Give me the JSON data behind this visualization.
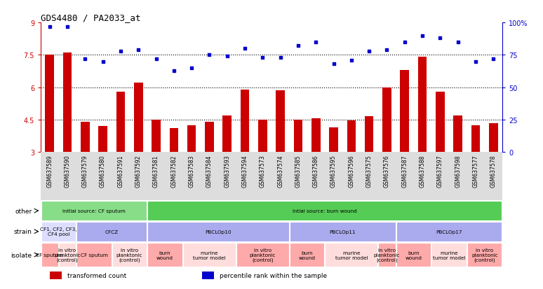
{
  "title": "GDS4480 / PA2033_at",
  "samples": [
    "GSM637589",
    "GSM637590",
    "GSM637579",
    "GSM637580",
    "GSM637591",
    "GSM637592",
    "GSM637581",
    "GSM637582",
    "GSM637583",
    "GSM637584",
    "GSM637593",
    "GSM637594",
    "GSM637573",
    "GSM637574",
    "GSM637585",
    "GSM637586",
    "GSM637595",
    "GSM637596",
    "GSM637575",
    "GSM637576",
    "GSM637587",
    "GSM637588",
    "GSM637597",
    "GSM637598",
    "GSM637577",
    "GSM637578"
  ],
  "bar_values": [
    7.5,
    7.6,
    4.4,
    4.2,
    5.8,
    6.2,
    4.5,
    4.1,
    4.25,
    4.4,
    4.7,
    5.9,
    4.5,
    5.85,
    4.5,
    4.55,
    4.15,
    4.45,
    4.65,
    6.0,
    6.8,
    7.4,
    5.8,
    4.7,
    4.25,
    4.35
  ],
  "dot_values": [
    97,
    97,
    72,
    70,
    78,
    79,
    72,
    63,
    65,
    75,
    74,
    80,
    73,
    73,
    82,
    85,
    68,
    71,
    78,
    79,
    85,
    90,
    88,
    85,
    70,
    72
  ],
  "ylim_left": [
    3,
    9
  ],
  "ylim_right": [
    0,
    100
  ],
  "yticks_left": [
    3,
    4.5,
    6,
    7.5,
    9
  ],
  "yticks_right": [
    0,
    25,
    50,
    75,
    100
  ],
  "ytick_labels_right": [
    "0",
    "25",
    "50",
    "75",
    "100%"
  ],
  "hlines": [
    4.5,
    6.0,
    7.5
  ],
  "bar_color": "#cc0000",
  "dot_color": "#0000cc",
  "bg_color": "#ffffff",
  "other_row": {
    "label": "other",
    "sections": [
      {
        "text": "initial source: CF sputum",
        "color": "#88dd88",
        "start": 0,
        "end": 6
      },
      {
        "text": "intial source: burn wound",
        "color": "#55cc55",
        "start": 6,
        "end": 26
      }
    ]
  },
  "strain_row": {
    "label": "strain",
    "sections": [
      {
        "text": "CF1, CF2, CF3,\nCF4 pool",
        "color": "#ddddff",
        "start": 0,
        "end": 2
      },
      {
        "text": "CFCZ",
        "color": "#aaaaee",
        "start": 2,
        "end": 6
      },
      {
        "text": "PBCLOp10",
        "color": "#aaaaee",
        "start": 6,
        "end": 14
      },
      {
        "text": "PBCLOp11",
        "color": "#aaaaee",
        "start": 14,
        "end": 20
      },
      {
        "text": "PBCLOp17",
        "color": "#aaaaee",
        "start": 20,
        "end": 26
      }
    ]
  },
  "isolate_row": {
    "label": "isolate",
    "sections": [
      {
        "text": "CF sputum",
        "color": "#ffaaaa",
        "start": 0,
        "end": 1
      },
      {
        "text": "in vitro\nplanktonic\n(control)",
        "color": "#ffdddd",
        "start": 1,
        "end": 2
      },
      {
        "text": "CF sputum",
        "color": "#ffaaaa",
        "start": 2,
        "end": 4
      },
      {
        "text": "in vitro\nplanktonic\n(control)",
        "color": "#ffdddd",
        "start": 4,
        "end": 6
      },
      {
        "text": "burn\nwound",
        "color": "#ffaaaa",
        "start": 6,
        "end": 8
      },
      {
        "text": "murine\ntumor model",
        "color": "#ffdddd",
        "start": 8,
        "end": 11
      },
      {
        "text": "in vitro\nplanktonic\n(control)",
        "color": "#ffaaaa",
        "start": 11,
        "end": 14
      },
      {
        "text": "burn\nwound",
        "color": "#ffaaaa",
        "start": 14,
        "end": 16
      },
      {
        "text": "murine\ntumor model",
        "color": "#ffdddd",
        "start": 16,
        "end": 19
      },
      {
        "text": "in vitro\nplanktonic\n(control)",
        "color": "#ffaaaa",
        "start": 19,
        "end": 20
      },
      {
        "text": "burn\nwound",
        "color": "#ffaaaa",
        "start": 20,
        "end": 22
      },
      {
        "text": "murine\ntumor model",
        "color": "#ffdddd",
        "start": 22,
        "end": 24
      },
      {
        "text": "in vitro\nplanktonic\n(control)",
        "color": "#ffaaaa",
        "start": 24,
        "end": 26
      }
    ]
  },
  "legend_items": [
    {
      "color": "#cc0000",
      "label": "transformed count"
    },
    {
      "color": "#0000cc",
      "label": "percentile rank within the sample"
    }
  ]
}
